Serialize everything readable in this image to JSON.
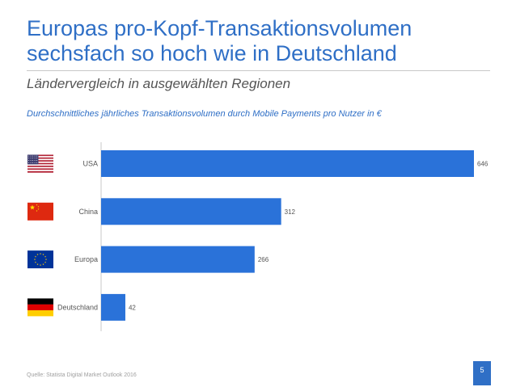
{
  "header": {
    "title_line1": "Europas pro-Kopf-Transaktionsvolumen",
    "title_line2": "sechsfach so hoch wie in Deutschland",
    "subtitle": "Ländervergleich in ausgewählten Regionen"
  },
  "chart_data": {
    "type": "bar",
    "orientation": "horizontal",
    "title": "Durchschnittliches jährliches Transaktionsvolumen durch Mobile Payments pro Nutzer in €",
    "categories": [
      "USA",
      "China",
      "Europa",
      "Deutschland"
    ],
    "values": [
      646,
      312,
      266,
      42
    ],
    "flag_icons": [
      "us-flag-icon",
      "china-flag-icon",
      "eu-flag-icon",
      "germany-flag-icon"
    ],
    "xlim": [
      0,
      646
    ],
    "bar_color": "#2a72d9",
    "grid": false,
    "legend": "none"
  },
  "footer": {
    "source": "Quelle: Statista Digital Market Outlook 2016",
    "page_number": "5"
  },
  "colors": {
    "accent": "#2f6fc6"
  }
}
